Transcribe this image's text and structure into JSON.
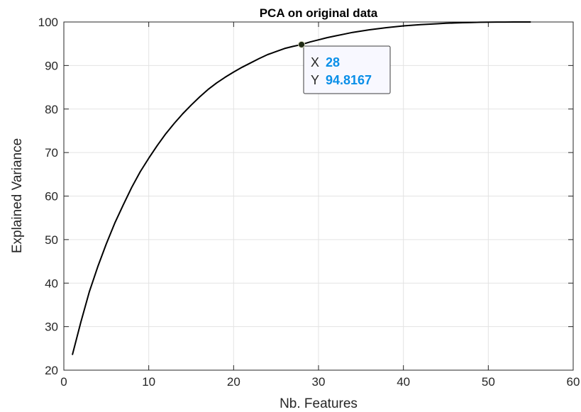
{
  "chart_data": {
    "type": "line",
    "title": "PCA on original data",
    "xlabel": "Nb. Features",
    "ylabel": "Explained Variance",
    "xlim": [
      0,
      60
    ],
    "ylim": [
      20,
      100
    ],
    "xticks": [
      0,
      10,
      20,
      30,
      40,
      50,
      60
    ],
    "yticks": [
      20,
      30,
      40,
      50,
      60,
      70,
      80,
      90,
      100
    ],
    "grid": true,
    "line_color": "#000000",
    "series": [
      {
        "x": [
          1,
          2,
          3,
          4,
          5,
          6,
          7,
          8,
          9,
          10,
          11,
          12,
          13,
          14,
          15,
          16,
          17,
          18,
          19,
          20,
          21,
          22,
          23,
          24,
          25,
          26,
          27,
          28,
          29,
          30,
          31,
          32,
          33,
          34,
          35,
          36,
          37,
          38,
          39,
          40,
          41,
          42,
          43,
          44,
          45,
          46,
          47,
          48,
          49,
          50,
          51,
          52,
          53,
          54,
          55
        ],
        "y": [
          23.5,
          31.0,
          38.0,
          43.8,
          49.0,
          53.8,
          58.0,
          62.0,
          65.6,
          68.7,
          71.6,
          74.3,
          76.7,
          78.9,
          80.9,
          82.8,
          84.5,
          86.0,
          87.3,
          88.5,
          89.6,
          90.6,
          91.6,
          92.5,
          93.2,
          93.9,
          94.4,
          94.82,
          95.4,
          95.9,
          96.4,
          96.8,
          97.2,
          97.6,
          97.9,
          98.2,
          98.45,
          98.7,
          98.9,
          99.1,
          99.25,
          99.4,
          99.5,
          99.6,
          99.7,
          99.78,
          99.84,
          99.89,
          99.93,
          99.96,
          99.98,
          99.99,
          100.0,
          100.0,
          100.0
        ]
      }
    ],
    "datatip": {
      "x_key": "X",
      "x_value": "28",
      "y_key": "Y",
      "y_value": "94.8167",
      "value_color": "#0a8fe8",
      "marker_color": "#1f2a14"
    }
  }
}
